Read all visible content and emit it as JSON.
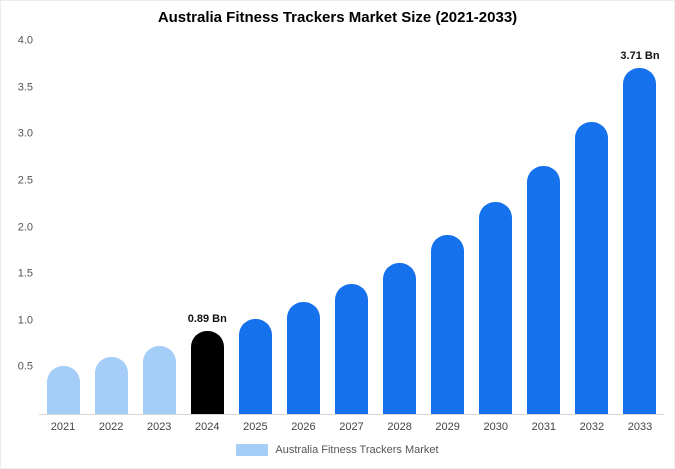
{
  "legend": {
    "label": "Australia Fitness Trackers Market",
    "swatch_color": "#a4cdf8"
  },
  "chart_data": {
    "type": "bar",
    "title": "Australia Fitness Trackers Market Size (2021-2033)",
    "categories": [
      "2021",
      "2022",
      "2023",
      "2024",
      "2025",
      "2026",
      "2027",
      "2028",
      "2029",
      "2030",
      "2031",
      "2032",
      "2033"
    ],
    "values": [
      0.52,
      0.61,
      0.73,
      0.89,
      1.02,
      1.2,
      1.39,
      1.62,
      1.92,
      2.27,
      2.66,
      3.13,
      3.71
    ],
    "unit": "Bn",
    "bar_colors": [
      "#a4cdf8",
      "#a4cdf8",
      "#a4cdf8",
      "#000000",
      "#1672ec",
      "#1672ec",
      "#1672ec",
      "#1672ec",
      "#1672ec",
      "#1672ec",
      "#1672ec",
      "#1672ec",
      "#1672ec"
    ],
    "point_labels": [
      null,
      null,
      null,
      "0.89 Bn",
      null,
      null,
      null,
      null,
      null,
      null,
      null,
      null,
      "3.71 Bn"
    ],
    "xlabel": "",
    "ylabel": "",
    "ylim": [
      0,
      4.0
    ],
    "yticks": [
      0.5,
      1.0,
      1.5,
      2.0,
      2.5,
      3.0,
      3.5,
      4.0
    ],
    "ytick_labels": [
      "0.5",
      "1.0",
      "1.5",
      "2.0",
      "2.5",
      "3.0",
      "3.5",
      "4.0"
    ],
    "grid": false,
    "legend_position": "bottom"
  }
}
